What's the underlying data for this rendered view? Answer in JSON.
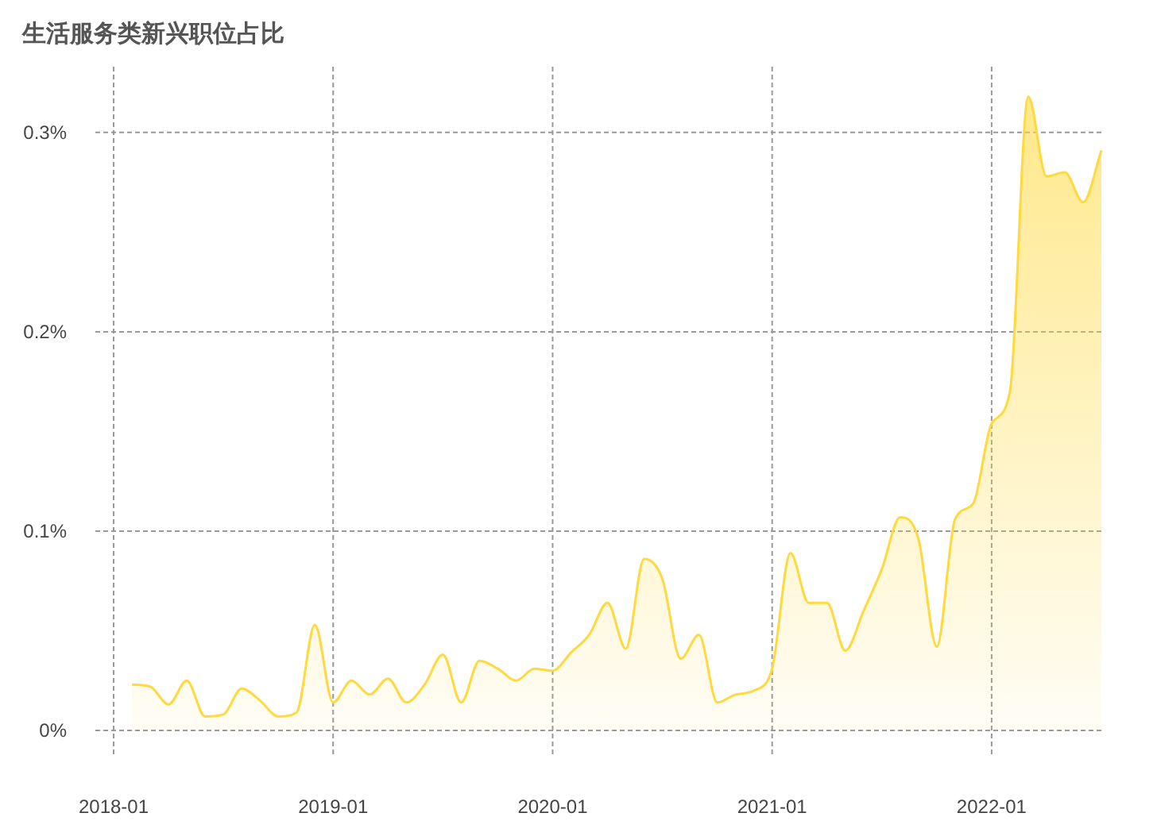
{
  "chart_data": {
    "type": "area",
    "title": "生活服务类新兴职位占比",
    "x": [
      "2018-02",
      "2018-03",
      "2018-04",
      "2018-05",
      "2018-06",
      "2018-07",
      "2018-08",
      "2018-09",
      "2018-10",
      "2018-11",
      "2018-12",
      "2019-01",
      "2019-02",
      "2019-03",
      "2019-04",
      "2019-05",
      "2019-06",
      "2019-07",
      "2019-08",
      "2019-09",
      "2019-10",
      "2019-11",
      "2019-12",
      "2020-01",
      "2020-02",
      "2020-03",
      "2020-04",
      "2020-05",
      "2020-06",
      "2020-07",
      "2020-08",
      "2020-09",
      "2020-10",
      "2020-11",
      "2020-12",
      "2021-01",
      "2021-02",
      "2021-03",
      "2021-04",
      "2021-05",
      "2021-06",
      "2021-07",
      "2021-08",
      "2021-09",
      "2021-10",
      "2021-11",
      "2021-12",
      "2022-01",
      "2022-02",
      "2022-03",
      "2022-04",
      "2022-05",
      "2022-06",
      "2022-07"
    ],
    "series": [
      {
        "color": "#ffd93d",
        "values": [
          0.023,
          0.022,
          0.013,
          0.025,
          0.007,
          0.008,
          0.021,
          0.015,
          0.007,
          0.009,
          0.053,
          0.014,
          0.025,
          0.018,
          0.026,
          0.014,
          0.023,
          0.038,
          0.014,
          0.035,
          0.031,
          0.025,
          0.031,
          0.03,
          0.039,
          0.048,
          0.064,
          0.041,
          0.086,
          0.076,
          0.036,
          0.048,
          0.014,
          0.018,
          0.02,
          0.031,
          0.089,
          0.064,
          0.064,
          0.04,
          0.06,
          0.081,
          0.107,
          0.096,
          0.042,
          0.106,
          0.114,
          0.154,
          0.17,
          0.318,
          0.278,
          0.28,
          0.265,
          0.291
        ]
      }
    ],
    "xlim": [
      "2017-12",
      "2022-07"
    ],
    "xticks": [
      "2018-01",
      "2019-01",
      "2020-01",
      "2021-01",
      "2022-01"
    ],
    "ylim": [
      0,
      0.333
    ],
    "yticks": [
      {
        "value": 0,
        "label": "0%"
      },
      {
        "value": 0.1,
        "label": "0.1%"
      },
      {
        "value": 0.2,
        "label": "0.2%"
      },
      {
        "value": 0.3,
        "label": "0.3%"
      }
    ],
    "grid": true
  }
}
